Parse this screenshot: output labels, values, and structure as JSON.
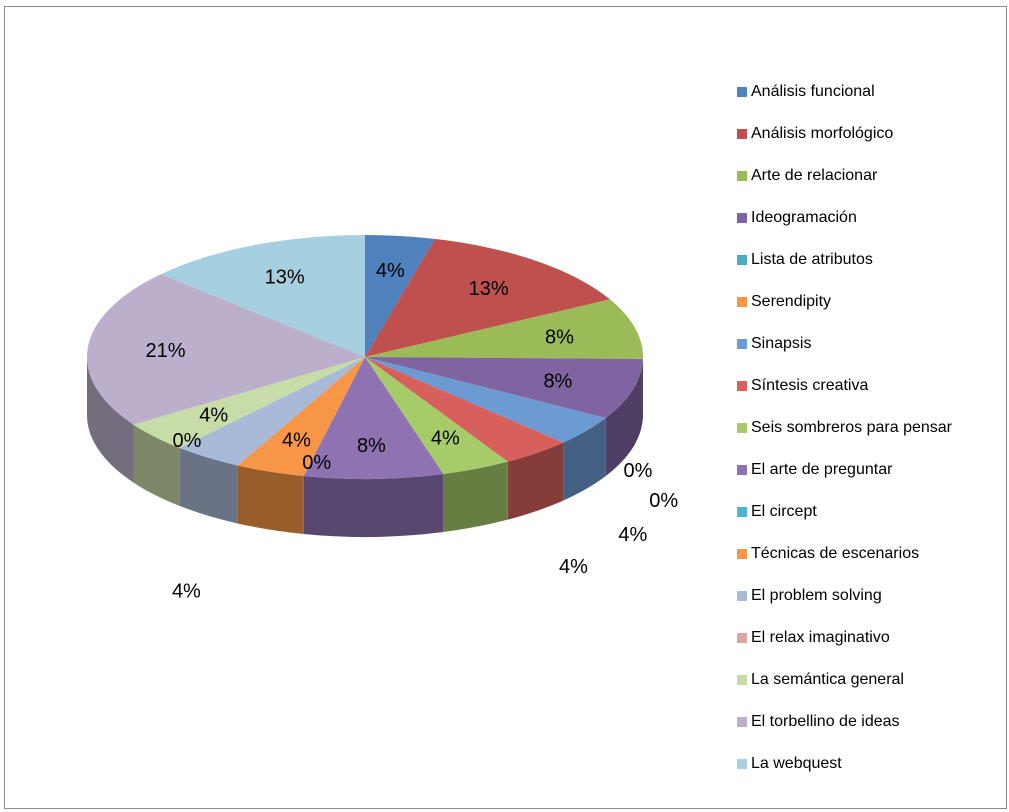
{
  "chart_data": {
    "type": "pie",
    "three_d": true,
    "legend_position": "right",
    "labels_format": "percent",
    "slices": [
      {
        "label": "Análisis funcional",
        "value": 4,
        "display": "4%",
        "color": "#4f81bd"
      },
      {
        "label": "Análisis morfológico",
        "value": 13,
        "display": "13%",
        "color": "#c0504d"
      },
      {
        "label": "Arte de relacionar",
        "value": 8,
        "display": "8%",
        "color": "#9bbb59"
      },
      {
        "label": "Ideogramación",
        "value": 8,
        "display": "8%",
        "color": "#8064a2"
      },
      {
        "label": "Lista de atributos",
        "value": 0,
        "display": "0%",
        "color": "#4bacc6"
      },
      {
        "label": "Serendipity",
        "value": 0,
        "display": "0%",
        "color": "#f79646"
      },
      {
        "label": "Sinapsis",
        "value": 4,
        "display": "4%",
        "color": "#6c9ad2"
      },
      {
        "label": "Síntesis creativa",
        "value": 4,
        "display": "4%",
        "color": "#d8605c"
      },
      {
        "label": "Seis sombreros para pensar",
        "value": 4,
        "display": "4%",
        "color": "#a6cc6a"
      },
      {
        "label": "El arte de preguntar",
        "value": 8,
        "display": "8%",
        "color": "#8e72b2"
      },
      {
        "label": "El circept",
        "value": 0,
        "display": "0%",
        "color": "#4fb5cc"
      },
      {
        "label": "Técnicas de escenarios",
        "value": 4,
        "display": "4%",
        "color": "#f79646"
      },
      {
        "label": "El problem solving",
        "value": 4,
        "display": "4%",
        "color": "#a8bad8"
      },
      {
        "label": "El relax imaginativo",
        "value": 0,
        "display": "0%",
        "color": "#dba6a5"
      },
      {
        "label": "La semántica general",
        "value": 4,
        "display": "4%",
        "color": "#c8dca8"
      },
      {
        "label": "El torbellino de ideas",
        "value": 21,
        "display": "21%",
        "color": "#bbafcc"
      },
      {
        "label": "La webquest",
        "value": 13,
        "display": "13%",
        "color": "#a6cfe0"
      }
    ]
  }
}
